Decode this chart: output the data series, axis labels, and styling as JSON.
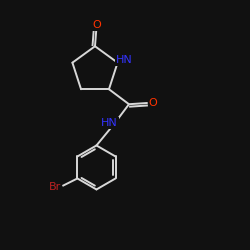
{
  "bg_color": "#111111",
  "bond_color": "#d8d8d8",
  "atom_colors": {
    "O": "#ff3300",
    "N": "#3333ff",
    "Br": "#bb2222",
    "C": "#d8d8d8"
  },
  "lw": 1.4,
  "fs": 8.0
}
